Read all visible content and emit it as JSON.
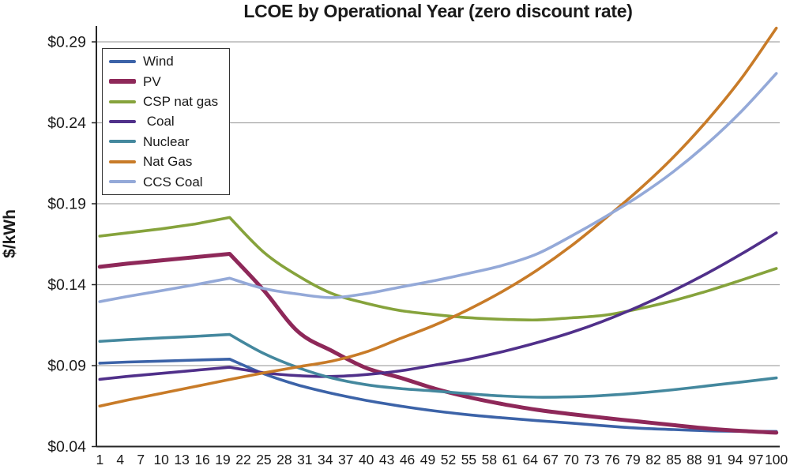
{
  "chart_data": {
    "type": "line",
    "title": "LCOE by Operational Year (zero discount rate)",
    "ylabel": "$/kWh",
    "xlabel": "",
    "ylim": [
      0.04,
      0.29
    ],
    "yticks": [
      0.04,
      0.09,
      0.14,
      0.19,
      0.24,
      0.29
    ],
    "ytick_labels": [
      "$0.04",
      "$0.09",
      "$0.14",
      "$0.19",
      "$0.24",
      "$0.29"
    ],
    "xticks": [
      1,
      4,
      7,
      10,
      13,
      16,
      19,
      22,
      25,
      28,
      31,
      34,
      37,
      40,
      43,
      46,
      49,
      52,
      55,
      58,
      61,
      64,
      67,
      70,
      73,
      76,
      79,
      82,
      85,
      88,
      91,
      94,
      97,
      100
    ],
    "x_years": [
      1,
      5,
      10,
      15,
      20,
      25,
      30,
      35,
      40,
      45,
      50,
      55,
      60,
      65,
      70,
      75,
      80,
      85,
      90,
      95,
      100
    ],
    "grid": "horizontal-only",
    "grid_color": "#a6a6a6",
    "axis_color": "#262626",
    "text_color": "#1a1a1a",
    "legend_position": "top-left-inside",
    "kink_year": 20,
    "series": [
      {
        "name": "Wind",
        "color": "#3c63a8",
        "width": 3.6,
        "values": [
          0.0915,
          0.0922,
          0.0928,
          0.0934,
          0.094,
          0.085,
          0.078,
          0.0728,
          0.0685,
          0.065,
          0.062,
          0.0596,
          0.0577,
          0.056,
          0.0545,
          0.0528,
          0.0513,
          0.0505,
          0.0497,
          0.0494,
          0.0493
        ]
      },
      {
        "name": "PV",
        "color": "#8e2859",
        "width": 5,
        "values": [
          0.151,
          0.153,
          0.155,
          0.157,
          0.159,
          0.1365,
          0.111,
          0.099,
          0.0885,
          0.0825,
          0.0758,
          0.0705,
          0.0662,
          0.0627,
          0.06,
          0.0576,
          0.0554,
          0.0532,
          0.0511,
          0.0496,
          0.0486
        ]
      },
      {
        "name": "CSP nat gas",
        "color": "#86a33c",
        "width": 3.6,
        "values": [
          0.17,
          0.172,
          0.1745,
          0.1775,
          0.1815,
          0.16,
          0.1455,
          0.1345,
          0.1285,
          0.124,
          0.1215,
          0.1196,
          0.1186,
          0.1182,
          0.1195,
          0.1212,
          0.1252,
          0.1302,
          0.1362,
          0.143,
          0.15
        ]
      },
      {
        "name": " Coal",
        "color": "#50308a",
        "width": 3.6,
        "values": [
          0.0815,
          0.0833,
          0.0852,
          0.0871,
          0.089,
          0.0856,
          0.0838,
          0.0833,
          0.0845,
          0.0868,
          0.0903,
          0.094,
          0.0987,
          0.1042,
          0.1105,
          0.118,
          0.1268,
          0.1365,
          0.1473,
          0.1592,
          0.172
        ]
      },
      {
        "name": "Nuclear",
        "color": "#44889e",
        "width": 3.6,
        "values": [
          0.105,
          0.106,
          0.1071,
          0.1081,
          0.1092,
          0.0975,
          0.0888,
          0.0823,
          0.0782,
          0.0758,
          0.0743,
          0.0726,
          0.0712,
          0.0705,
          0.0707,
          0.0716,
          0.0731,
          0.0751,
          0.0775,
          0.0799,
          0.0824
        ]
      },
      {
        "name": "Nat Gas",
        "color": "#c87b28",
        "width": 3.6,
        "values": [
          0.065,
          0.0687,
          0.0729,
          0.0771,
          0.0814,
          0.0855,
          0.0892,
          0.0928,
          0.0985,
          0.1068,
          0.115,
          0.1248,
          0.136,
          0.149,
          0.164,
          0.181,
          0.199,
          0.219,
          0.242,
          0.268,
          0.2985
        ]
      },
      {
        "name": "CCS Coal",
        "color": "#94a9d8",
        "width": 3.6,
        "values": [
          0.1295,
          0.1327,
          0.1363,
          0.14,
          0.144,
          0.1376,
          0.1342,
          0.132,
          0.1345,
          0.1385,
          0.1425,
          0.147,
          0.152,
          0.159,
          0.17,
          0.182,
          0.195,
          0.21,
          0.2275,
          0.2475,
          0.2705
        ]
      }
    ]
  }
}
